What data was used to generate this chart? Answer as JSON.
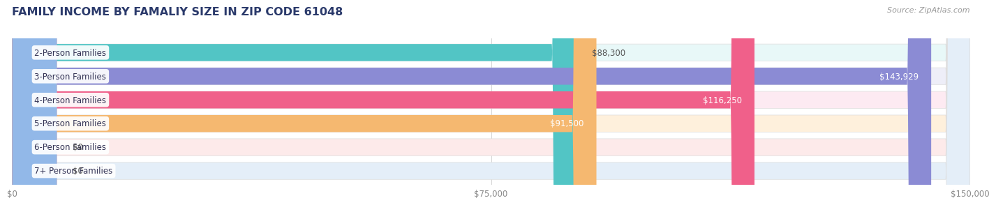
{
  "title": "FAMILY INCOME BY FAMALIY SIZE IN ZIP CODE 61048",
  "source": "Source: ZipAtlas.com",
  "categories": [
    "2-Person Families",
    "3-Person Families",
    "4-Person Families",
    "5-Person Families",
    "6-Person Families",
    "7+ Person Families"
  ],
  "values": [
    88300,
    143929,
    116250,
    91500,
    0,
    0
  ],
  "zero_stub": 7000,
  "max_value": 150000,
  "bar_colors": [
    "#52C5C5",
    "#8B8BD4",
    "#F0608A",
    "#F5B870",
    "#F09898",
    "#92B8E8"
  ],
  "bar_bg_colors": [
    "#E8F8F8",
    "#EEEEF8",
    "#FDEAF2",
    "#FEF0DC",
    "#FDEAEA",
    "#E4EEF8"
  ],
  "value_labels": [
    "$88,300",
    "$143,929",
    "$116,250",
    "$91,500",
    "$0",
    "$0"
  ],
  "x_ticks": [
    0,
    75000,
    150000
  ],
  "x_tick_labels": [
    "$0",
    "$75,000",
    "$150,000"
  ],
  "title_color": "#2B3A6B",
  "title_fontsize": 11.5,
  "label_fontsize": 8.5,
  "value_fontsize": 8.5,
  "source_fontsize": 8,
  "background_color": "#FFFFFF"
}
